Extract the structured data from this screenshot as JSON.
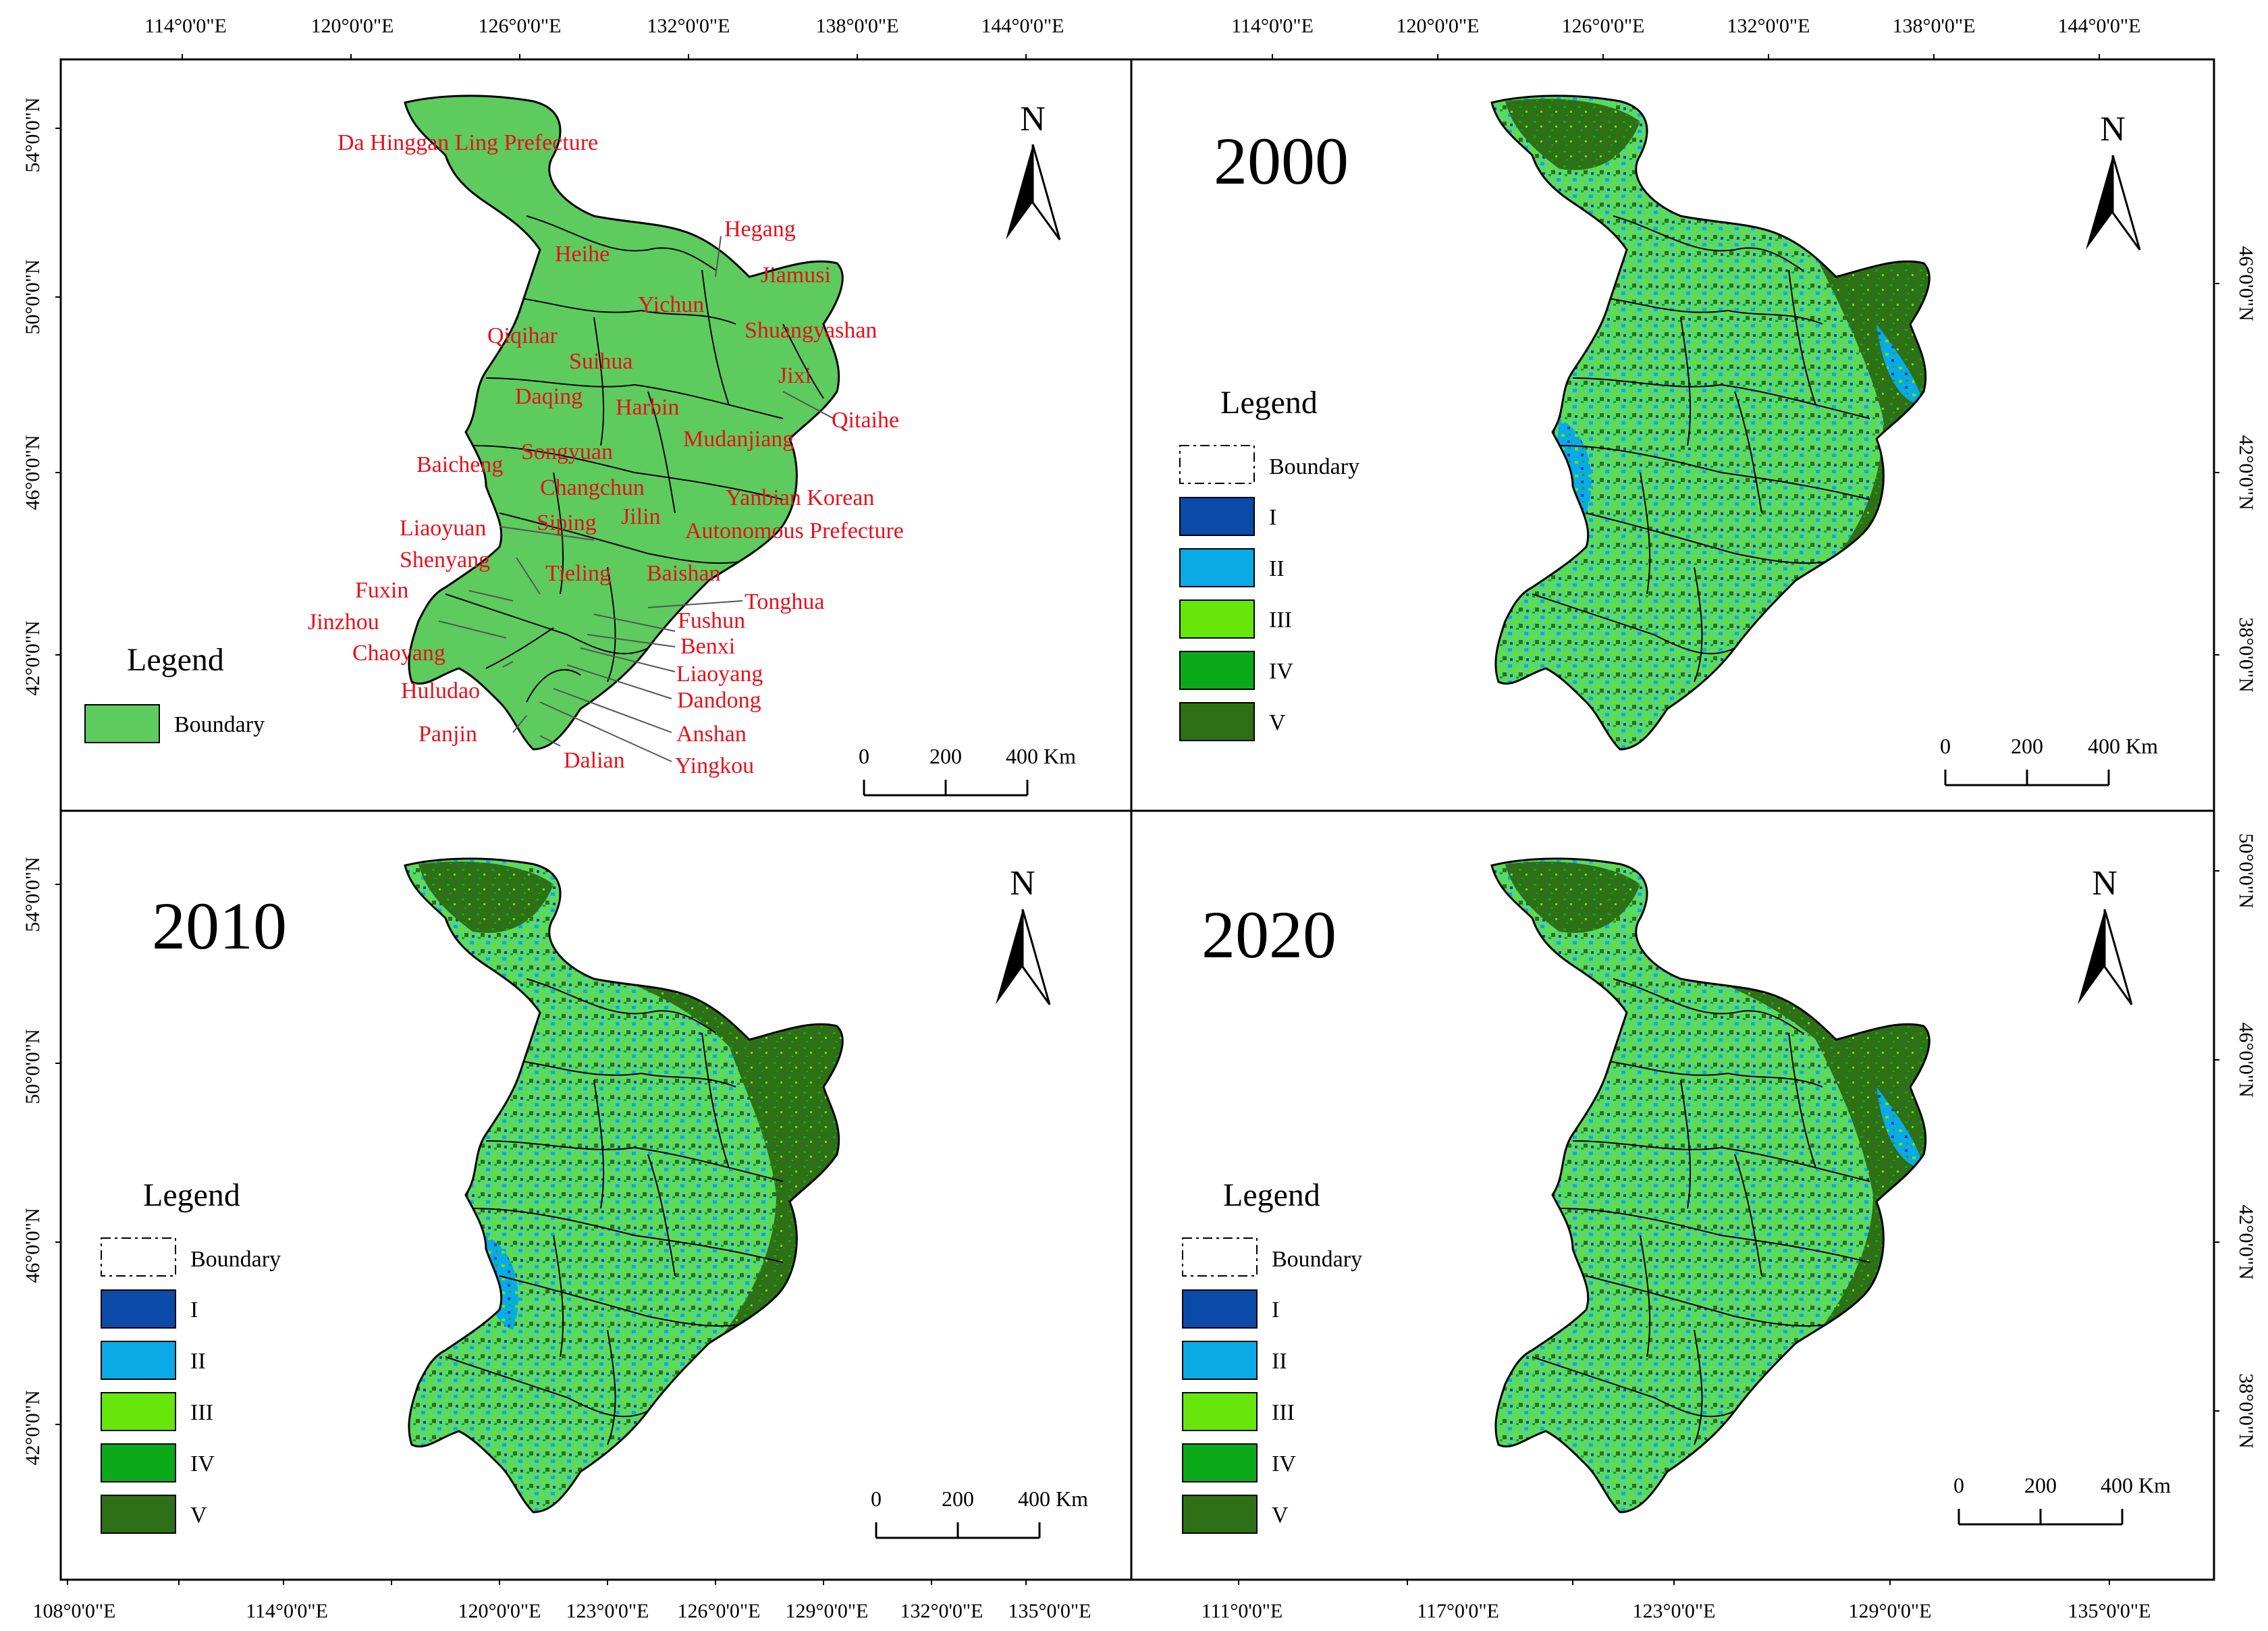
{
  "colors": {
    "boundary_fill": "#5dcb5d",
    "class_I": "#0a4aa8",
    "class_II": "#0aaae6",
    "class_III": "#66e60a",
    "class_IV": "#0aaa1a",
    "class_V": "#2e7016",
    "label_red": "#e8101a",
    "frame": "#000000"
  },
  "axes": {
    "top_lon": [
      "114°0'0\"E",
      "120°0'0\"E",
      "126°0'0\"E",
      "132°0'0\"E",
      "138°0'0\"E",
      "144°0'0\"E"
    ],
    "bottom_left_lon": [
      "108°0'0\"E",
      "114°0'0\"E",
      "120°0'0\"E",
      "123°0'0\"E",
      "126°0'0\"E",
      "129°0'0\"E",
      "132°0'0\"E",
      "135°0'0\"E"
    ],
    "bottom_right_lon": [
      "111°0'0\"E",
      "117°0'0\"E",
      "123°0'0\"E",
      "129°0'0\"E",
      "135°0'0\"E"
    ],
    "left_lat_top": [
      "54°0'0\"N",
      "50°0'0\"N",
      "46°0'0\"N",
      "42°0'0\"N"
    ],
    "left_lat_bottom": [
      "54°0'0\"N",
      "50°0'0\"N",
      "46°0'0\"N",
      "42°0'0\"N"
    ],
    "right_lat_top": [
      "46°0'0\"N",
      "42°0'0\"N",
      "38°0'0\"N"
    ],
    "right_lat_bottom": [
      "50°0'0\"N",
      "46°0'0\"N",
      "42°0'0\"N",
      "38°0'0\"N"
    ]
  },
  "north_label": "N",
  "scale_bar": {
    "ticks": [
      "0",
      "200",
      "400 Km"
    ]
  },
  "legend": {
    "title": "Legend",
    "boundary_label": "Boundary",
    "classes": [
      "I",
      "II",
      "III",
      "IV",
      "V"
    ]
  },
  "panels": [
    {
      "id": "reference",
      "year": ""
    },
    {
      "id": "p2000",
      "year": "2000"
    },
    {
      "id": "p2010",
      "year": "2010"
    },
    {
      "id": "p2020",
      "year": "2020"
    }
  ],
  "prefectures": [
    "Da Hinggan Ling Prefecture",
    "Heihe",
    "Hegang",
    "Jiamusi",
    "Yichun",
    "Qiqihar",
    "Shuangyashan",
    "Suihua",
    "Jixi",
    "Daqing",
    "Harbin",
    "Qitaihe",
    "Mudanjiang",
    "Baicheng",
    "Songyuan",
    "Changchun",
    "Yanbian Korean",
    "Autonomous Prefecture",
    "Liaoyuan",
    "Siping",
    "Jilin",
    "Shenyang",
    "Tieling",
    "Baishan",
    "Fuxin",
    "Tonghua",
    "Jinzhou",
    "Fushun",
    "Benxi",
    "Chaoyang",
    "Liaoyang",
    "Huludao",
    "Dandong",
    "Panjin",
    "Anshan",
    "Dalian",
    "Yingkou"
  ]
}
